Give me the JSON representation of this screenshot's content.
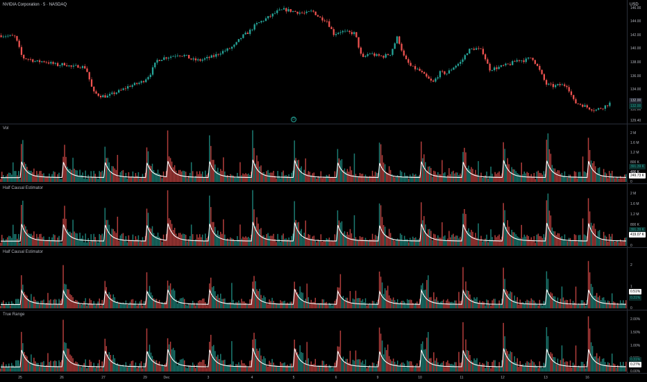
{
  "symbol_title": "NVIDIA Corporation · 5 · NASDAQ",
  "currency": "USD",
  "session_marker": "D",
  "colors": {
    "up": "#26a69a",
    "down": "#ef5350",
    "line": "#ffffff",
    "background": "#000000",
    "grid": "#2a2e39"
  },
  "price_pane": {
    "y_ticks": [
      "146.00",
      "144.00",
      "142.00",
      "140.00",
      "138.00",
      "136.00",
      "134.00",
      "132.00",
      "131.00",
      "129.40"
    ],
    "badges": [
      {
        "text": "132.00",
        "color": "#d1d4dc",
        "bg": "#1e222d"
      },
      {
        "text": "132.00",
        "color": "#26a69a",
        "bg": "#0b2b29"
      }
    ]
  },
  "panes": [
    {
      "title": "Vol",
      "y_ticks": [
        "2 M",
        "1.6 M",
        "1.2 M",
        "800 K",
        "400 K",
        "0"
      ],
      "badges": [
        {
          "text": "391.39 K",
          "color": "#26a69a",
          "bg": "#0b2b29"
        },
        {
          "text": "400 K",
          "color": "#b2b5be",
          "bg": "transparent"
        },
        {
          "text": "249.73 K",
          "color": "#000000",
          "bg": "#ffffff"
        }
      ]
    },
    {
      "title": "Half Causal Estimator",
      "y_ticks": [
        "2 M",
        "1.6 M",
        "1.2 M",
        "800 K",
        "400 K",
        "0"
      ],
      "badges": [
        {
          "text": "391.39 K",
          "color": "#26a69a",
          "bg": "#0b2b29"
        },
        {
          "text": "400 K",
          "color": "#b2b5be",
          "bg": "transparent"
        },
        {
          "text": "419.07 K",
          "color": "#000000",
          "bg": "#ffffff"
        }
      ]
    },
    {
      "title": "Half Causal Estimator",
      "y_ticks": [
        "2",
        "1",
        "0"
      ],
      "badges": [
        {
          "text": "0.51%",
          "color": "#000000",
          "bg": "#ffffff"
        },
        {
          "text": "0.31%",
          "color": "#26a69a",
          "bg": "#0b2b29"
        }
      ]
    },
    {
      "title": "True Range",
      "y_ticks": [
        "2.00%",
        "1.50%",
        "1.00%",
        "0.50%",
        "0.00%"
      ],
      "badges": [
        {
          "text": "0.31%",
          "color": "#26a69a",
          "bg": "#0b2b29"
        },
        {
          "text": "0.27%",
          "color": "#000000",
          "bg": "#ffffff"
        }
      ]
    }
  ],
  "time_axis": [
    "25",
    "26",
    "27",
    "29",
    "Dec",
    "3",
    "4",
    "5",
    "6",
    "9",
    "10",
    "11",
    "12",
    "13",
    "16"
  ],
  "chart_data": {
    "type": "line",
    "price_series": [
      142.0,
      141.9,
      141.8,
      138.7,
      138.5,
      138.1,
      138.2,
      137.9,
      137.6,
      137.8,
      137.3,
      137.5,
      137.2,
      133.6,
      133.1,
      133.0,
      133.5,
      133.9,
      134.5,
      134.8,
      135.2,
      136.2,
      138.3,
      138.7,
      138.9,
      139.2,
      139.0,
      138.4,
      138.3,
      138.6,
      138.9,
      139.5,
      139.9,
      140.5,
      141.8,
      142.5,
      143.6,
      144.2,
      144.8,
      145.5,
      145.8,
      145.6,
      145.4,
      145.2,
      145.6,
      144.6,
      144.2,
      142.2,
      142.6,
      142.4,
      142.3,
      138.5,
      139.4,
      139.0,
      138.9,
      139.3,
      141.8,
      138.6,
      137.3,
      136.9,
      135.9,
      135.0,
      136.5,
      136.4,
      137.4,
      138.1,
      139.8,
      140.1,
      139.7,
      137.0,
      137.2,
      137.5,
      137.8,
      138.4,
      138.3,
      138.8,
      137.0,
      134.8,
      134.5,
      134.7,
      134.6,
      132.1,
      131.8,
      131.3,
      131.0,
      131.4,
      132.0
    ],
    "volume_peaks_at_session_open": [
      "25",
      "26",
      "27",
      "29",
      "Dec",
      "3",
      "4",
      "5",
      "6",
      "9",
      "10",
      "11",
      "12",
      "13",
      "16"
    ]
  }
}
